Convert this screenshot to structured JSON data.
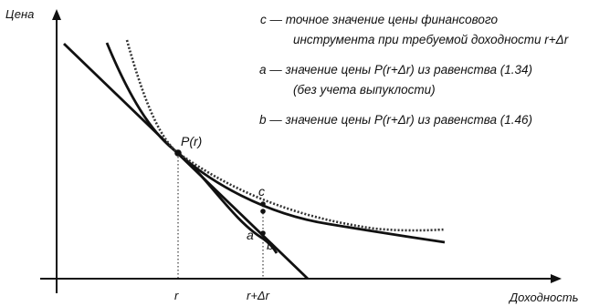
{
  "axes": {
    "y_label": "Цена",
    "x_label": "Доходность"
  },
  "ticks": {
    "r": "r",
    "r_plus_dr": "r+Δr"
  },
  "points": {
    "P": "P(r)",
    "c": "c",
    "a": "a",
    "b": "b"
  },
  "legend": {
    "c_line1": "c — точное значение цены финансового",
    "c_line2": "инструмента при требуемой доходности r+Δr",
    "a_line1": "a — значение цены P(r+Δr) из равенства (1.34)",
    "a_line2": "(без учета выпуклости)",
    "b_line1": "b — значение цены P(r+Δr) из равенства (1.46)"
  },
  "colors": {
    "ink": "#111111",
    "dotted": "#333333"
  }
}
